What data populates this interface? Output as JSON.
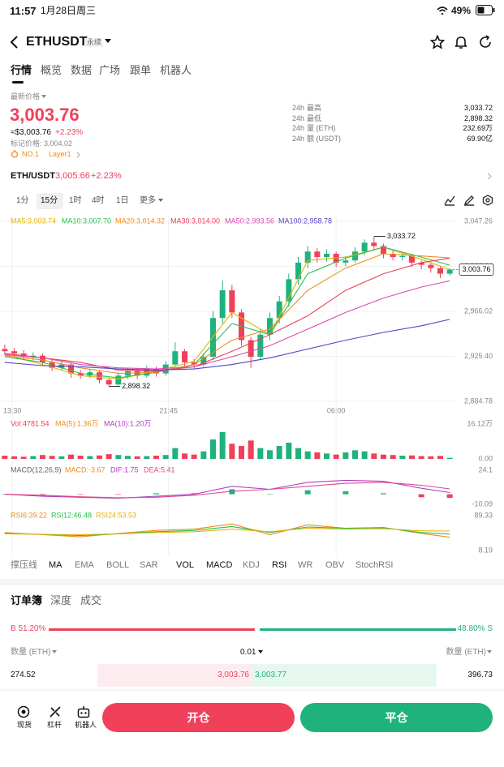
{
  "status": {
    "time": "11:57",
    "date": "1月28日周三",
    "battery": "49%"
  },
  "header": {
    "symbol": "ETHUSDT",
    "badge": "永续"
  },
  "tabs": [
    "行情",
    "概览",
    "数据",
    "广场",
    "跟单",
    "机器人"
  ],
  "price": {
    "label": "最新价格",
    "last": "3,003.76",
    "usd": "≈$3,003.76",
    "change": "+2.23%",
    "mark": "标记价格: 3,004.02",
    "rank": "NO.1",
    "sector": "Layer1"
  },
  "stats": [
    {
      "period": "24h",
      "name": "最高",
      "value": "3,033.72"
    },
    {
      "period": "24h",
      "name": "最低",
      "value": "2,898.32"
    },
    {
      "period": "24h",
      "name": "量 (ETH)",
      "value": "232.69万"
    },
    {
      "period": "24h",
      "name": "额 (USDT)",
      "value": "69.90亿"
    }
  ],
  "pair": {
    "symbol": "ETH/USDT",
    "price": "3,005.66",
    "change": "+2.23%"
  },
  "intervals": [
    "1分",
    "15分",
    "1时",
    "4时",
    "1日",
    "更多"
  ],
  "indicators": [
    "撑压线",
    "MA",
    "EMA",
    "BOLL",
    "SAR",
    "VOL",
    "MACD",
    "KDJ",
    "RSI",
    "WR",
    "OBV",
    "StochRSI"
  ],
  "orderbook": {
    "tabs": [
      "订单簿",
      "深度",
      "成交"
    ],
    "buy": {
      "value": 51.2,
      "label": "B 51.20%"
    },
    "sell": {
      "value": 48.8,
      "label": "48.80% S"
    },
    "qty_left": "数量 (ETH)",
    "step": "0.01",
    "qty_right": "数量 (ETH)",
    "rows": [
      [
        "274.52",
        "3,003.76",
        "3,003.77",
        "396.73"
      ]
    ]
  },
  "nav": [
    "现货",
    "杠杆",
    "机器人"
  ],
  "buttons": [
    "开仓",
    "平仓"
  ],
  "chart_data": {
    "type": "candlestick",
    "up_color": "#20b27c",
    "down_color": "#f0405a",
    "xlim": [
      -0.5,
      47.5
    ],
    "xticks": [
      {
        "value": 0.8,
        "label": "13:30"
      },
      {
        "value": 17.3,
        "label": "21:45"
      },
      {
        "value": 35,
        "label": "06:00"
      }
    ],
    "ylim": [
      2884.78,
      3047.26
    ],
    "yticks": [
      {
        "value": 3047.26,
        "label": "3,047.26"
      },
      {
        "value": 3006.64,
        "label": "3,006.64"
      },
      {
        "value": 2966.02,
        "label": "2,966.02"
      },
      {
        "value": 2925.4,
        "label": "2,925.40"
      },
      {
        "value": 2884.78,
        "label": "2,884.78"
      }
    ],
    "candles": [
      [
        2932,
        2936,
        2927,
        2930
      ],
      [
        2930,
        2933,
        2925,
        2928
      ],
      [
        2928,
        2931,
        2922,
        2925
      ],
      [
        2925,
        2929,
        2922,
        2926
      ],
      [
        2926,
        2928,
        2917,
        2920
      ],
      [
        2920,
        2923,
        2912,
        2915
      ],
      [
        2915,
        2921,
        2913,
        2918
      ],
      [
        2918,
        2920,
        2906,
        2910
      ],
      [
        2910,
        2913,
        2905,
        2908
      ],
      [
        2908,
        2914,
        2906,
        2911
      ],
      [
        2911,
        2913,
        2901,
        2904
      ],
      [
        2904,
        2906,
        2898.32,
        2900
      ],
      [
        2900,
        2911,
        2899,
        2908
      ],
      [
        2908,
        2915,
        2905,
        2912
      ],
      [
        2912,
        2914,
        2905,
        2908
      ],
      [
        2908,
        2917,
        2906,
        2914
      ],
      [
        2914,
        2916,
        2907,
        2910
      ],
      [
        2910,
        2921,
        2908,
        2918
      ],
      [
        2918,
        2938,
        2916,
        2930
      ],
      [
        2930,
        2932,
        2917,
        2920
      ],
      [
        2920,
        2923,
        2914,
        2918
      ],
      [
        2918,
        2928,
        2916,
        2925
      ],
      [
        2925,
        2966,
        2922,
        2960
      ],
      [
        2960,
        2994,
        2955,
        2985
      ],
      [
        2985,
        2990,
        2960,
        2965
      ],
      [
        2965,
        2968,
        2935,
        2940
      ],
      [
        2940,
        2943,
        2915,
        2925
      ],
      [
        2925,
        2950,
        2922,
        2945
      ],
      [
        2945,
        2965,
        2940,
        2960
      ],
      [
        2960,
        2980,
        2955,
        2975
      ],
      [
        2975,
        3000,
        2970,
        2995
      ],
      [
        2995,
        3015,
        2990,
        3010
      ],
      [
        3010,
        3025,
        3005,
        3020
      ],
      [
        3020,
        3023,
        3010,
        3015
      ],
      [
        3015,
        3022,
        3011,
        3018
      ],
      [
        3018,
        3020,
        3006,
        3010
      ],
      [
        3010,
        3016,
        3007,
        3012
      ],
      [
        3012,
        3024,
        3010,
        3020
      ],
      [
        3020,
        3031,
        3017,
        3028
      ],
      [
        3028,
        3033.72,
        3021,
        3025
      ],
      [
        3025,
        3027,
        3014,
        3018
      ],
      [
        3018,
        3021,
        3012,
        3015
      ],
      [
        3015,
        3019,
        3012,
        3016
      ],
      [
        3016,
        3018,
        3006,
        3010
      ],
      [
        3010,
        3012,
        3004,
        3008
      ],
      [
        3008,
        3010,
        3001,
        3005
      ],
      [
        3005,
        3007,
        2996,
        3000
      ],
      [
        3000,
        3005,
        2998,
        3003.76
      ]
    ],
    "ma": {
      "x": [
        0,
        4,
        8,
        12,
        16,
        20,
        24,
        28,
        32,
        36,
        40,
        44,
        47
      ],
      "series": [
        {
          "name": "MA5:3,003.74",
          "color": "#e3b30a",
          "values": [
            2927,
            2918,
            2908,
            2905,
            2912,
            2921,
            2965,
            2945,
            3012,
            3015,
            3024,
            3013,
            3003.74
          ]
        },
        {
          "name": "MA10:3,007.70",
          "color": "#2bbf4e",
          "values": [
            2925,
            2920,
            2910,
            2906,
            2911,
            2918,
            2955,
            2945,
            3000,
            3014,
            3024,
            3015,
            3007.7
          ]
        },
        {
          "name": "MA20:3,014.32",
          "color": "#f08c1a",
          "values": [
            2926,
            2922,
            2915,
            2910,
            2911,
            2918,
            2940,
            2950,
            2985,
            3005,
            3018,
            3016,
            3014.32
          ]
        },
        {
          "name": "MA30:3,014.00",
          "color": "#e8415a",
          "values": [
            2928,
            2924,
            2920,
            2913,
            2912,
            2916,
            2930,
            2945,
            2962,
            2985,
            3000,
            3010,
            3014.0
          ]
        },
        {
          "name": "MA50:2,993.56",
          "color": "#d94bb0",
          "values": [
            2927,
            2924,
            2918,
            2915,
            2914,
            2916,
            2925,
            2935,
            2950,
            2965,
            2978,
            2988,
            2993.56
          ]
        },
        {
          "name": "MA100:2,958.78",
          "color": "#5b3fc4",
          "values": [
            2920,
            2917,
            2916,
            2914,
            2913,
            2914,
            2918,
            2924,
            2932,
            2940,
            2947,
            2953,
            2958.78
          ]
        }
      ]
    },
    "annotations": [
      {
        "x": 39,
        "value": 3033.72,
        "label": "3,033.72"
      },
      {
        "x": 11,
        "value": 2898.32,
        "label": "2,898.32"
      }
    ],
    "last": {
      "value": 3003.76,
      "label": "3,003.76"
    },
    "volume": {
      "legend": [
        {
          "text": "Vol:4781.54",
          "color": "#e8415a"
        },
        {
          "text": "MA(5):1.36万",
          "color": "#f08c1a"
        },
        {
          "text": "MA(10):1.20万",
          "color": "#b03fc4"
        }
      ],
      "ylim": [
        0,
        16.12
      ],
      "yticks": [
        {
          "value": 16.12,
          "label": "16.12万"
        },
        {
          "value": 0,
          "label": "0.00"
        }
      ],
      "values": [
        1.5,
        1.2,
        1,
        1.3,
        1.8,
        1.4,
        1.2,
        2,
        1.5,
        1.3,
        1.6,
        2.2,
        1.8,
        1.4,
        1.2,
        1.3,
        1.5,
        1.8,
        5,
        2.5,
        2,
        3.5,
        9,
        12.4,
        7,
        6,
        8.5,
        5,
        4,
        6,
        7.5,
        5,
        3.5,
        3,
        2.5,
        2,
        3,
        4,
        3.5,
        2.5,
        2,
        1.8,
        1.5,
        1.6,
        1.3,
        1.2,
        1.4,
        0.5
      ]
    },
    "macd": {
      "title": "MACD(12,26,9)",
      "ylim": [
        -10.09,
        24.1
      ],
      "yticks": [
        24.1,
        -10.09
      ],
      "x": [
        0,
        4,
        8,
        12,
        16,
        20,
        24,
        28,
        32,
        36,
        40,
        44,
        47
      ],
      "hist": {
        "name": "MACD:-3.67",
        "color": "#f08c1a",
        "values": [
          0,
          -1,
          -0.5,
          -0.5,
          1,
          1,
          5,
          0,
          4,
          3,
          1,
          -3,
          -3.67
        ]
      },
      "series": [
        {
          "name": "DIF:1.75",
          "color": "#b03fc4",
          "values": [
            0,
            -2,
            -3,
            -4,
            -2,
            0,
            8,
            5,
            12,
            14,
            13,
            6,
            1.75
          ]
        },
        {
          "name": "DEA:5.41",
          "color": "#e04b8a",
          "values": [
            0,
            -1,
            -2.5,
            -3.5,
            -3,
            -1,
            3,
            5,
            8,
            11,
            12,
            9,
            5.41
          ]
        }
      ]
    },
    "rsi": {
      "ylim": [
        8.19,
        89.33
      ],
      "yticks": [
        89.33,
        8.19
      ],
      "x": [
        0,
        4,
        8,
        12,
        16,
        20,
        24,
        28,
        32,
        36,
        40,
        44,
        47
      ],
      "series": [
        {
          "name": "RSI6:39.22",
          "color": "#f08c1a",
          "values": [
            50,
            45,
            40,
            48,
            55,
            58,
            70,
            45,
            68,
            60,
            62,
            48,
            39.22
          ]
        },
        {
          "name": "RSI12:46.48",
          "color": "#2bbf4e",
          "values": [
            48,
            46,
            43,
            47,
            52,
            55,
            64,
            50,
            63,
            60,
            61,
            50,
            46.48
          ]
        },
        {
          "name": "RSI24:53.53",
          "color": "#e3b30a",
          "values": [
            47,
            46,
            45,
            47,
            50,
            52,
            58,
            52,
            60,
            58,
            59,
            54,
            53.53
          ]
        }
      ]
    }
  }
}
